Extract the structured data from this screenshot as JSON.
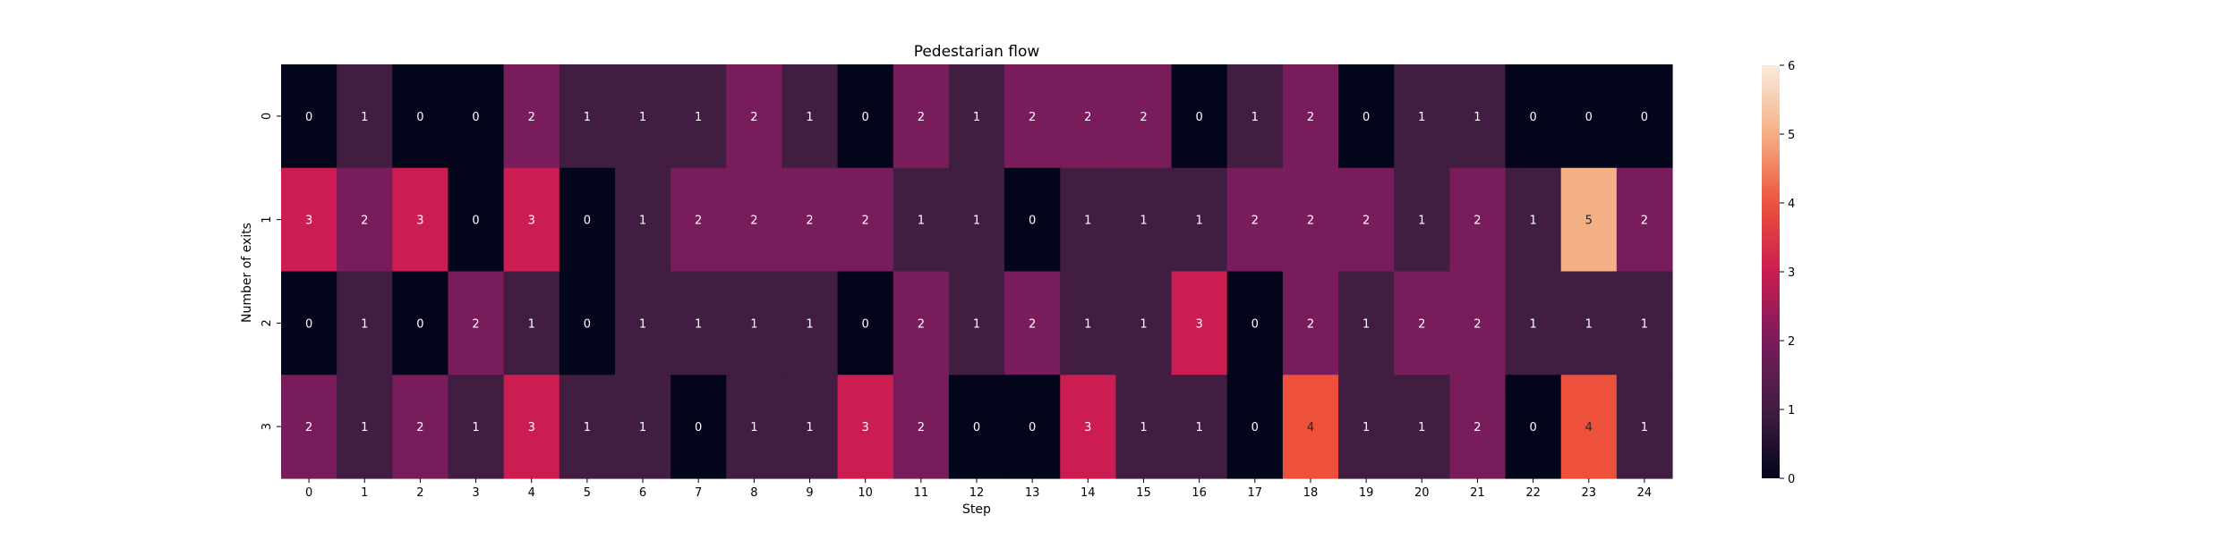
{
  "chart_data": {
    "type": "heatmap",
    "title": "Pedestarian flow",
    "xlabel": "Step",
    "ylabel": "Number of exits",
    "x_categories": [
      "0",
      "1",
      "2",
      "3",
      "4",
      "5",
      "6",
      "7",
      "8",
      "9",
      "10",
      "11",
      "12",
      "13",
      "14",
      "15",
      "16",
      "17",
      "18",
      "19",
      "20",
      "21",
      "22",
      "23",
      "24"
    ],
    "y_categories": [
      "0",
      "1",
      "2",
      "3"
    ],
    "values": [
      [
        0,
        1,
        0,
        0,
        2,
        1,
        1,
        1,
        2,
        1,
        0,
        2,
        1,
        2,
        2,
        2,
        0,
        1,
        2,
        0,
        1,
        1,
        0,
        0,
        0
      ],
      [
        3,
        2,
        3,
        0,
        3,
        0,
        1,
        2,
        2,
        2,
        2,
        1,
        1,
        0,
        1,
        1,
        1,
        2,
        2,
        2,
        1,
        2,
        1,
        5,
        2
      ],
      [
        0,
        1,
        0,
        2,
        1,
        0,
        1,
        1,
        1,
        1,
        0,
        2,
        1,
        2,
        1,
        1,
        3,
        0,
        2,
        1,
        2,
        2,
        1,
        1,
        1
      ],
      [
        2,
        1,
        2,
        1,
        3,
        1,
        1,
        0,
        1,
        1,
        3,
        2,
        0,
        0,
        3,
        1,
        1,
        0,
        4,
        1,
        1,
        2,
        0,
        4,
        1
      ]
    ],
    "colorbar": {
      "range": [
        0,
        6
      ],
      "ticks": [
        "0",
        "1",
        "2",
        "3",
        "4",
        "5",
        "6"
      ]
    },
    "colormap": "rocket",
    "annotations": true
  }
}
